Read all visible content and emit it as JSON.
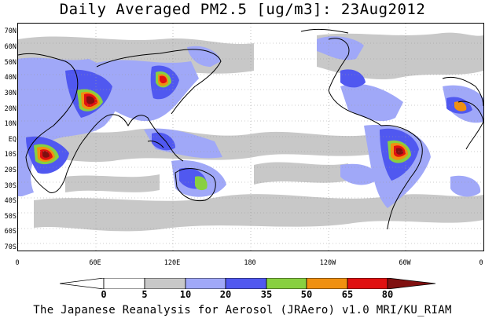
{
  "title": "Daily Averaged PM2.5 [ug/m3]: 23Aug2012",
  "map": {
    "lat_labels": [
      "70N",
      "60N",
      "50N",
      "40N",
      "30N",
      "20N",
      "10N",
      "EQ",
      "10S",
      "20S",
      "30S",
      "40S",
      "50S",
      "60S",
      "70S"
    ],
    "lon_labels": [
      "0",
      "60E",
      "120E",
      "180",
      "120W",
      "60W",
      "0"
    ],
    "grid": "dotted"
  },
  "colorbar": {
    "levels": [
      "0",
      "5",
      "10",
      "20",
      "35",
      "50",
      "65",
      "80"
    ],
    "colors": [
      "#ffffff",
      "#c8c8c8",
      "#a0a8f8",
      "#5058f0",
      "#88d040",
      "#f09010",
      "#e01010",
      "#801010"
    ]
  },
  "footer": "The Japanese Reanalysis for Aerosol (JRAero) v1.0 MRI/KU_RIAM"
}
